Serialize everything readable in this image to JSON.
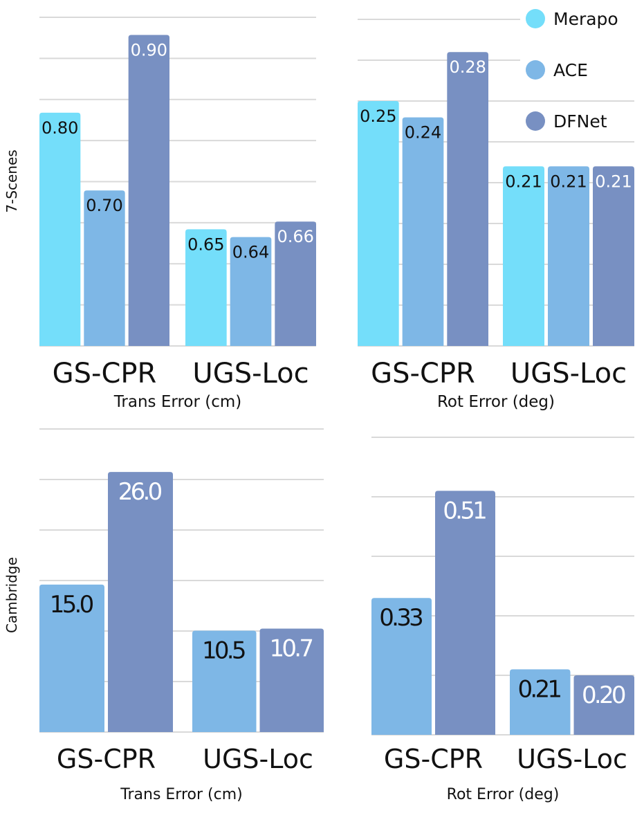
{
  "legend": [
    {
      "name": "Merapo",
      "color": "#74DEFA"
    },
    {
      "name": "ACE",
      "color": "#7EB7E6"
    },
    {
      "name": "DFNet",
      "color": "#7890C2"
    }
  ],
  "row_labels": [
    "7-Scenes",
    "Cambridge"
  ],
  "chart_data": [
    {
      "type": "bar",
      "row": "7-Scenes",
      "xlabel": "Trans Error (cm)",
      "categories": [
        "GS-CPR",
        "UGS-Loc"
      ],
      "ylim": [
        0.5,
        0.92
      ],
      "grid": true,
      "series": [
        {
          "name": "Merapo",
          "values": [
            0.8,
            0.65
          ]
        },
        {
          "name": "ACE",
          "values": [
            0.7,
            0.64
          ]
        },
        {
          "name": "DFNet",
          "values": [
            0.9,
            0.66
          ]
        }
      ],
      "data_labels": [
        [
          "0.80",
          "0.65"
        ],
        [
          "0.70",
          "0.64"
        ],
        [
          "0.90",
          "0.66"
        ]
      ]
    },
    {
      "type": "bar",
      "row": "7-Scenes",
      "xlabel": "Rot Error (deg)",
      "categories": [
        "GS-CPR",
        "UGS-Loc"
      ],
      "ylim": [
        0.1,
        0.3
      ],
      "grid": true,
      "series": [
        {
          "name": "Merapo",
          "values": [
            0.25,
            0.21
          ]
        },
        {
          "name": "ACE",
          "values": [
            0.24,
            0.21
          ]
        },
        {
          "name": "DFNet",
          "values": [
            0.28,
            0.21
          ]
        }
      ],
      "data_labels": [
        [
          "0.25",
          "0.21"
        ],
        [
          "0.24",
          "0.21"
        ],
        [
          "0.28",
          "0.21"
        ]
      ]
    },
    {
      "type": "bar",
      "row": "Cambridge",
      "xlabel": "Trans Error (cm)",
      "categories": [
        "GS-CPR",
        "UGS-Loc"
      ],
      "ylim": [
        0.6,
        30.2
      ],
      "grid": true,
      "series": [
        {
          "name": "ACE",
          "values": [
            15.0,
            10.5
          ]
        },
        {
          "name": "DFNet",
          "values": [
            26.0,
            10.7
          ]
        }
      ],
      "data_labels": [
        [
          "15.0",
          "10.5"
        ],
        [
          "26.0",
          "10.7"
        ]
      ]
    },
    {
      "type": "bar",
      "row": "Cambridge",
      "xlabel": "Rot Error (deg)",
      "categories": [
        "GS-CPR",
        "UGS-Loc"
      ],
      "ylim": [
        0.1,
        0.6
      ],
      "grid": true,
      "series": [
        {
          "name": "ACE",
          "values": [
            0.33,
            0.21
          ]
        },
        {
          "name": "DFNet",
          "values": [
            0.51,
            0.2
          ]
        }
      ],
      "data_labels": [
        [
          "0.33",
          "0.21"
        ],
        [
          "0.51",
          "0.20"
        ]
      ]
    }
  ]
}
